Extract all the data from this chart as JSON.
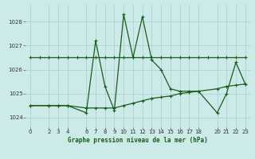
{
  "title": "Graphe pression niveau de la mer (hPa)",
  "bg_color": "#cceae8",
  "grid_color": "#aad4d2",
  "line_color": "#1a5c1a",
  "x_ticks": [
    0,
    2,
    3,
    4,
    6,
    7,
    8,
    9,
    10,
    11,
    12,
    13,
    14,
    15,
    16,
    17,
    18,
    20,
    21,
    22,
    23
  ],
  "y_ticks": [
    1024,
    1025,
    1026,
    1027,
    1028
  ],
  "xlim": [
    -0.5,
    23.5
  ],
  "ylim": [
    1023.6,
    1028.7
  ],
  "series1_x": [
    0,
    1,
    2,
    3,
    4,
    5,
    6,
    7,
    8,
    9,
    10,
    11,
    12,
    13,
    14,
    15,
    16,
    17,
    18,
    19,
    20,
    21,
    22,
    23
  ],
  "series1_y": [
    1026.5,
    1026.5,
    1026.5,
    1026.5,
    1026.5,
    1026.5,
    1026.5,
    1026.5,
    1026.5,
    1026.5,
    1026.5,
    1026.5,
    1026.5,
    1026.5,
    1026.5,
    1026.5,
    1026.5,
    1026.5,
    1026.5,
    1026.5,
    1026.5,
    1026.5,
    1026.5,
    1026.5
  ],
  "series2_x": [
    0,
    2,
    3,
    4,
    6,
    7,
    8,
    9,
    10,
    11,
    12,
    13,
    14,
    15,
    16,
    17,
    18,
    20,
    21,
    22,
    23
  ],
  "series2_y": [
    1024.5,
    1024.5,
    1024.5,
    1024.5,
    1024.2,
    1027.2,
    1025.3,
    1024.3,
    1028.3,
    1026.5,
    1028.2,
    1026.4,
    1026.0,
    1025.2,
    1025.1,
    1025.1,
    1025.1,
    1024.2,
    1025.0,
    1026.3,
    1025.4
  ],
  "series3_x": [
    0,
    2,
    3,
    4,
    6,
    7,
    8,
    9,
    10,
    11,
    12,
    13,
    14,
    15,
    16,
    17,
    18,
    20,
    21,
    22,
    23
  ],
  "series3_y": [
    1024.5,
    1024.5,
    1024.5,
    1024.5,
    1024.4,
    1024.4,
    1024.4,
    1024.4,
    1024.5,
    1024.6,
    1024.7,
    1024.8,
    1024.85,
    1024.9,
    1025.0,
    1025.05,
    1025.1,
    1025.2,
    1025.3,
    1025.35,
    1025.4
  ]
}
